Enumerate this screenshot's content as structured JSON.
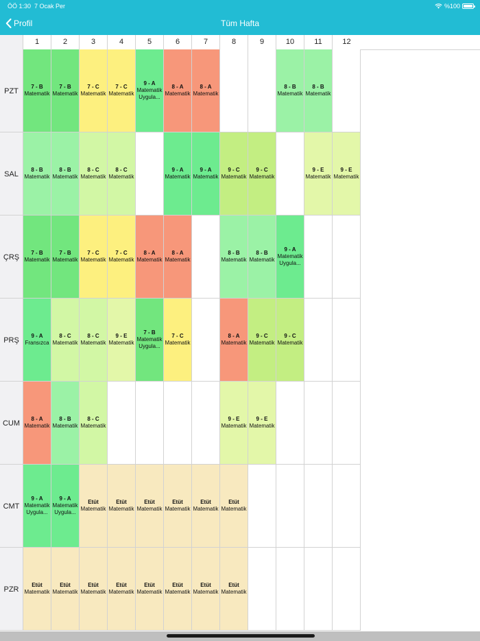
{
  "status_bar": {
    "time": "ÖÖ 1:30",
    "date": "7 Ocak Per",
    "battery": "%100",
    "wifi_icon": "wifi-icon",
    "battery_icon": "battery-icon"
  },
  "nav": {
    "back_label": "Profil",
    "back_icon": "chevron-left-icon",
    "title": "Tüm Hafta"
  },
  "colors": {
    "header": "#22bcd4",
    "green_dark": "#72e67e",
    "green_mint": "#6deb8f",
    "green_light": "#9bf2a6",
    "yellow": "#fdf07f",
    "salmon": "#f7977a",
    "lime": "#c3ee82",
    "lime_pale": "#e3f7a9",
    "pale_green": "#d2f7a5",
    "etut": "#f8e9bf",
    "empty": "#ffffff"
  },
  "columns": [
    "1",
    "2",
    "3",
    "4",
    "5",
    "6",
    "7",
    "8",
    "9",
    "10",
    "11",
    "12"
  ],
  "days": [
    {
      "label": "PZT",
      "cells": [
        {
          "title": "7 - B",
          "sub": "Matematik",
          "color": "#72e67e"
        },
        {
          "title": "7 - B",
          "sub": "Matematik",
          "color": "#72e67e"
        },
        {
          "title": "7 - C",
          "sub": "Matematik",
          "color": "#fdf07f"
        },
        {
          "title": "7 - C",
          "sub": "Matematik",
          "color": "#fdf07f"
        },
        {
          "title": "9 - A",
          "sub": "Matematik Uygula...",
          "color": "#6deb8f"
        },
        {
          "title": "8 - A",
          "sub": "Matematik",
          "color": "#f7977a"
        },
        {
          "title": "8 - A",
          "sub": "Matematik",
          "color": "#f7977a"
        },
        {
          "title": "",
          "sub": "",
          "color": "#ffffff"
        },
        {
          "title": "",
          "sub": "",
          "color": "#ffffff"
        },
        {
          "title": "8 - B",
          "sub": "Matematik",
          "color": "#9bf2a6"
        },
        {
          "title": "8 - B",
          "sub": "Matematik",
          "color": "#9bf2a6"
        },
        {
          "title": "",
          "sub": "",
          "color": "#ffffff"
        }
      ]
    },
    {
      "label": "SAL",
      "cells": [
        {
          "title": "8 - B",
          "sub": "Matematik",
          "color": "#9bf2a6"
        },
        {
          "title": "8 - B",
          "sub": "Matematik",
          "color": "#9bf2a6"
        },
        {
          "title": "8 - C",
          "sub": "Matematik",
          "color": "#d2f7a5"
        },
        {
          "title": "8 - C",
          "sub": "Matematik",
          "color": "#d2f7a5"
        },
        {
          "title": "",
          "sub": "",
          "color": "#ffffff"
        },
        {
          "title": "9 - A",
          "sub": "Matematik",
          "color": "#6deb8f"
        },
        {
          "title": "9 - A",
          "sub": "Matematik",
          "color": "#6deb8f"
        },
        {
          "title": "9 - C",
          "sub": "Matematik",
          "color": "#c3ee82"
        },
        {
          "title": "9 - C",
          "sub": "Matematik",
          "color": "#c3ee82"
        },
        {
          "title": "",
          "sub": "",
          "color": "#ffffff"
        },
        {
          "title": "9 - E",
          "sub": "Matematik",
          "color": "#e3f7a9"
        },
        {
          "title": "9 - E",
          "sub": "Matematik",
          "color": "#e3f7a9"
        }
      ]
    },
    {
      "label": "ÇRŞ",
      "cells": [
        {
          "title": "7 - B",
          "sub": "Matematik",
          "color": "#72e67e"
        },
        {
          "title": "7 - B",
          "sub": "Matematik",
          "color": "#72e67e"
        },
        {
          "title": "7 - C",
          "sub": "Matematik",
          "color": "#fdf07f"
        },
        {
          "title": "7 - C",
          "sub": "Matematik",
          "color": "#fdf07f"
        },
        {
          "title": "8 - A",
          "sub": "Matematik",
          "color": "#f7977a"
        },
        {
          "title": "8 - A",
          "sub": "Matematik",
          "color": "#f7977a"
        },
        {
          "title": "",
          "sub": "",
          "color": "#ffffff"
        },
        {
          "title": "8 - B",
          "sub": "Matematik",
          "color": "#9bf2a6"
        },
        {
          "title": "8 - B",
          "sub": "Matematik",
          "color": "#9bf2a6"
        },
        {
          "title": "9 - A",
          "sub": "Matematik Uygula...",
          "color": "#6deb8f"
        },
        {
          "title": "",
          "sub": "",
          "color": "#ffffff"
        },
        {
          "title": "",
          "sub": "",
          "color": "#ffffff"
        }
      ]
    },
    {
      "label": "PRŞ",
      "cells": [
        {
          "title": "9 - A",
          "sub": "Fransızca",
          "color": "#6deb8f"
        },
        {
          "title": "8 - C",
          "sub": "Matematik",
          "color": "#d2f7a5"
        },
        {
          "title": "8 - C",
          "sub": "Matematik",
          "color": "#d2f7a5"
        },
        {
          "title": "9 - E",
          "sub": "Matematik",
          "color": "#e3f7a9"
        },
        {
          "title": "7 - B",
          "sub": "Matematik Uygula...",
          "color": "#72e67e"
        },
        {
          "title": "7 - C",
          "sub": "Matematik",
          "color": "#fdf07f"
        },
        {
          "title": "",
          "sub": "",
          "color": "#ffffff"
        },
        {
          "title": "8 - A",
          "sub": "Matematik",
          "color": "#f7977a"
        },
        {
          "title": "9 - C",
          "sub": "Matematik",
          "color": "#c3ee82"
        },
        {
          "title": "9 - C",
          "sub": "Matematik",
          "color": "#c3ee82"
        },
        {
          "title": "",
          "sub": "",
          "color": "#ffffff"
        },
        {
          "title": "",
          "sub": "",
          "color": "#ffffff"
        }
      ]
    },
    {
      "label": "CUM",
      "cells": [
        {
          "title": "8 - A",
          "sub": "Matematik",
          "color": "#f7977a"
        },
        {
          "title": "8 - B",
          "sub": "Matematik",
          "color": "#9bf2a6"
        },
        {
          "title": "8 - C",
          "sub": "Matematik",
          "color": "#d2f7a5"
        },
        {
          "title": "",
          "sub": "",
          "color": "#ffffff"
        },
        {
          "title": "",
          "sub": "",
          "color": "#ffffff"
        },
        {
          "title": "",
          "sub": "",
          "color": "#ffffff"
        },
        {
          "title": "",
          "sub": "",
          "color": "#ffffff"
        },
        {
          "title": "9 - E",
          "sub": "Matematik",
          "color": "#e3f7a9"
        },
        {
          "title": "9 - E",
          "sub": "Matematik",
          "color": "#e3f7a9"
        },
        {
          "title": "",
          "sub": "",
          "color": "#ffffff"
        },
        {
          "title": "",
          "sub": "",
          "color": "#ffffff"
        },
        {
          "title": "",
          "sub": "",
          "color": "#ffffff"
        }
      ]
    },
    {
      "label": "CMT",
      "cells": [
        {
          "title": "9 - A",
          "sub": "Matematik Uygula...",
          "color": "#6deb8f"
        },
        {
          "title": "9 - A",
          "sub": "Matematik Uygula...",
          "color": "#6deb8f"
        },
        {
          "title": "Etüt",
          "sub": "Matematik",
          "color": "#f8e9bf"
        },
        {
          "title": "Etüt",
          "sub": "Matematik",
          "color": "#f8e9bf"
        },
        {
          "title": "Etüt",
          "sub": "Matematik",
          "color": "#f8e9bf"
        },
        {
          "title": "Etüt",
          "sub": "Matematik",
          "color": "#f8e9bf"
        },
        {
          "title": "Etüt",
          "sub": "Matematik",
          "color": "#f8e9bf"
        },
        {
          "title": "Etüt",
          "sub": "Matematik",
          "color": "#f8e9bf"
        },
        {
          "title": "",
          "sub": "",
          "color": "#ffffff"
        },
        {
          "title": "",
          "sub": "",
          "color": "#ffffff"
        },
        {
          "title": "",
          "sub": "",
          "color": "#ffffff"
        },
        {
          "title": "",
          "sub": "",
          "color": "#ffffff"
        }
      ]
    },
    {
      "label": "PZR",
      "cells": [
        {
          "title": "Etüt",
          "sub": "Matematik",
          "color": "#f8e9bf"
        },
        {
          "title": "Etüt",
          "sub": "Matematik",
          "color": "#f8e9bf"
        },
        {
          "title": "Etüt",
          "sub": "Matematik",
          "color": "#f8e9bf"
        },
        {
          "title": "Etüt",
          "sub": "Matematik",
          "color": "#f8e9bf"
        },
        {
          "title": "Etüt",
          "sub": "Matematik",
          "color": "#f8e9bf"
        },
        {
          "title": "Etüt",
          "sub": "Matematik",
          "color": "#f8e9bf"
        },
        {
          "title": "Etüt",
          "sub": "Matematik",
          "color": "#f8e9bf"
        },
        {
          "title": "Etüt",
          "sub": "Matematik",
          "color": "#f8e9bf"
        },
        {
          "title": "",
          "sub": "",
          "color": "#ffffff"
        },
        {
          "title": "",
          "sub": "",
          "color": "#ffffff"
        },
        {
          "title": "",
          "sub": "",
          "color": "#ffffff"
        },
        {
          "title": "",
          "sub": "",
          "color": "#ffffff"
        }
      ]
    }
  ]
}
